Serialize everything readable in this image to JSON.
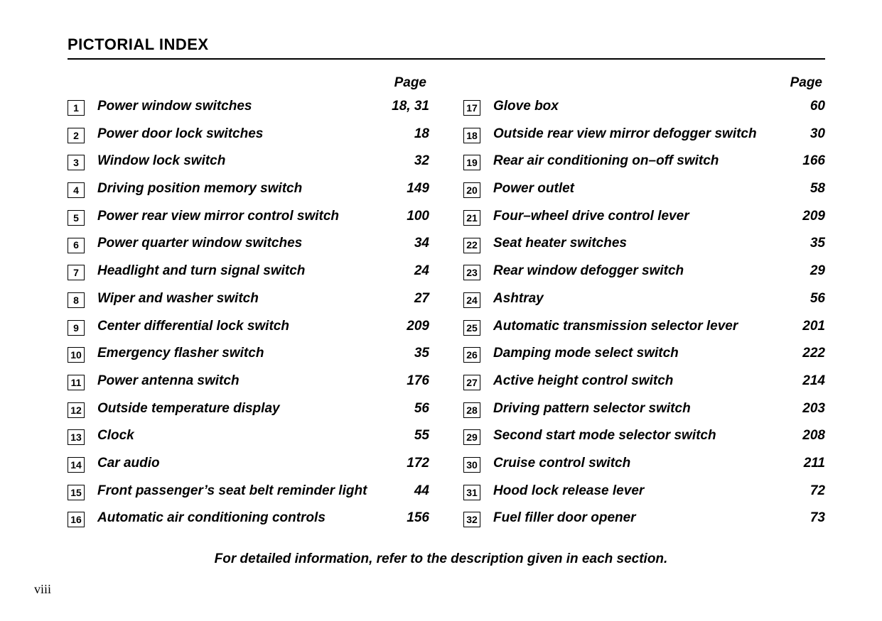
{
  "title": "PICTORIAL INDEX",
  "page_header": "Page",
  "footer_note": "For detailed information, refer to the description given in each section.",
  "page_number": "viii",
  "left_column": [
    {
      "n": "1",
      "label": "Power window switches",
      "page": "18, 31"
    },
    {
      "n": "2",
      "label": "Power door lock switches",
      "page": "18"
    },
    {
      "n": "3",
      "label": "Window lock switch",
      "page": "32"
    },
    {
      "n": "4",
      "label": "Driving position memory switch",
      "page": "149"
    },
    {
      "n": "5",
      "label": "Power rear view mirror control switch",
      "page": "100"
    },
    {
      "n": "6",
      "label": "Power quarter window switches",
      "page": "34"
    },
    {
      "n": "7",
      "label": "Headlight and turn signal switch",
      "page": "24"
    },
    {
      "n": "8",
      "label": "Wiper and washer switch",
      "page": "27"
    },
    {
      "n": "9",
      "label": "Center differential lock switch",
      "page": "209"
    },
    {
      "n": "10",
      "label": "Emergency flasher switch",
      "page": "35"
    },
    {
      "n": "11",
      "label": "Power antenna switch",
      "page": "176"
    },
    {
      "n": "12",
      "label": "Outside temperature display",
      "page": "56"
    },
    {
      "n": "13",
      "label": "Clock",
      "page": "55"
    },
    {
      "n": "14",
      "label": "Car audio",
      "page": "172"
    },
    {
      "n": "15",
      "label": "Front passenger’s seat belt reminder light",
      "page": "44"
    },
    {
      "n": "16",
      "label": "Automatic air conditioning controls",
      "page": "156"
    }
  ],
  "right_column": [
    {
      "n": "17",
      "label": "Glove box",
      "page": "60"
    },
    {
      "n": "18",
      "label": "Outside rear view mirror defogger switch",
      "page": "30"
    },
    {
      "n": "19",
      "label": "Rear air conditioning on–off switch",
      "page": "166"
    },
    {
      "n": "20",
      "label": "Power outlet",
      "page": "58"
    },
    {
      "n": "21",
      "label": "Four–wheel drive control lever",
      "page": "209"
    },
    {
      "n": "22",
      "label": "Seat heater switches",
      "page": "35"
    },
    {
      "n": "23",
      "label": "Rear window defogger switch",
      "page": "29"
    },
    {
      "n": "24",
      "label": "Ashtray",
      "page": "56"
    },
    {
      "n": "25",
      "label": "Automatic transmission selector lever",
      "page": "201"
    },
    {
      "n": "26",
      "label": "Damping mode select switch",
      "page": "222"
    },
    {
      "n": "27",
      "label": "Active height control switch",
      "page": "214"
    },
    {
      "n": "28",
      "label": "Driving pattern selector switch",
      "page": "203"
    },
    {
      "n": "29",
      "label": "Second start mode selector switch",
      "page": "208"
    },
    {
      "n": "30",
      "label": "Cruise control switch",
      "page": "211"
    },
    {
      "n": "31",
      "label": "Hood lock release lever",
      "page": "72"
    },
    {
      "n": "32",
      "label": "Fuel filler door opener",
      "page": "73"
    }
  ]
}
